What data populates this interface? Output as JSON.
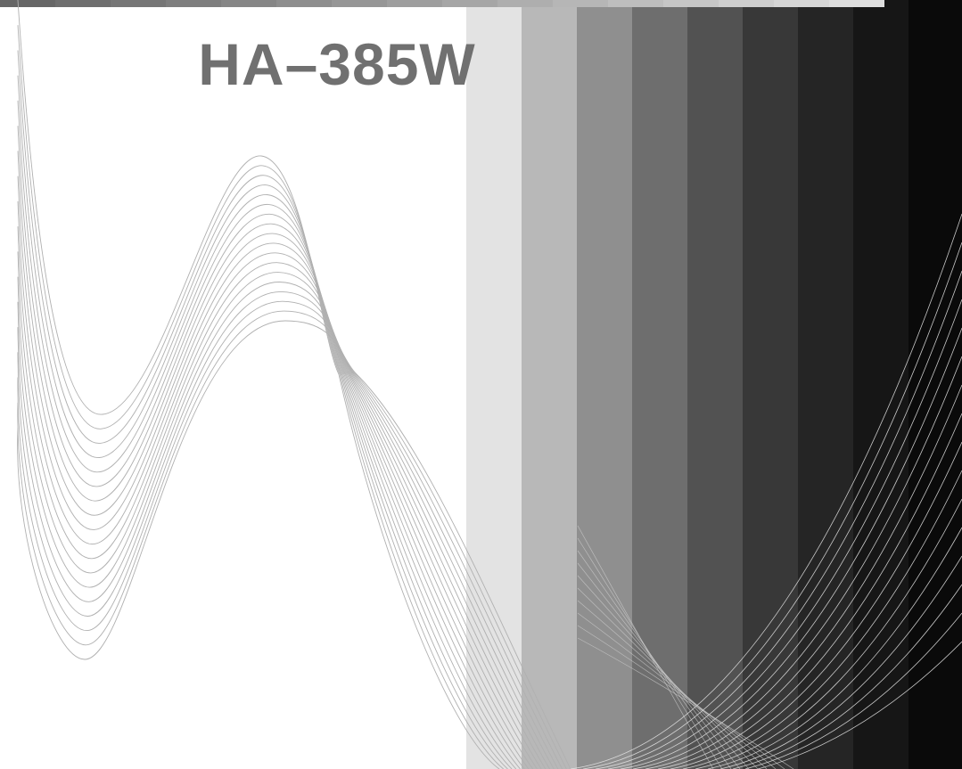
{
  "header": {
    "title": "HA–385W"
  }
}
